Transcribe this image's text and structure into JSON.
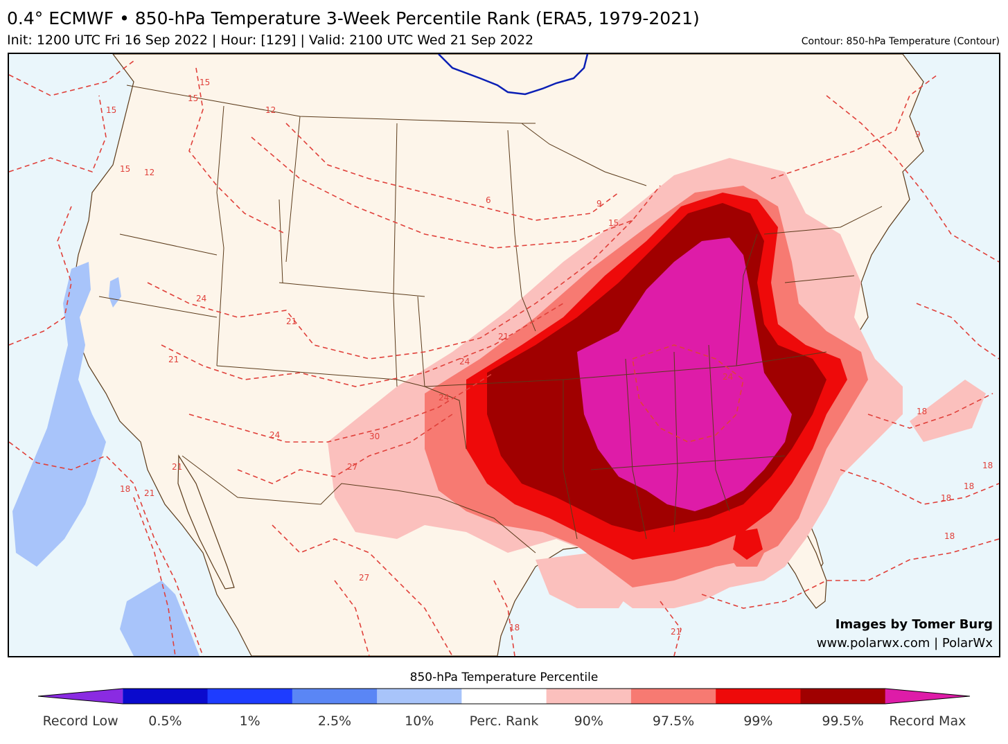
{
  "header": {
    "title": "0.4° ECMWF • 850-hPa Temperature 3-Week Percentile Rank (ERA5, 1979-2021)",
    "subtitle": "Init: 1200 UTC Fri 16 Sep 2022 | Hour: [129] | Valid: 2100 UTC Wed 21 Sep 2022",
    "contour_note": "Contour: 850-hPa Temperature (Contour)"
  },
  "credits": {
    "line1": "Images by Tomer Burg",
    "line2": "www.polarwx.com | PolarWx"
  },
  "colorbar": {
    "title": "850-hPa Temperature Percentile",
    "colors": [
      "#8a2be2",
      "#0a0acd",
      "#1e3cff",
      "#5a86f5",
      "#a8c4fa",
      "#ffffff",
      "#fbc0bd",
      "#f77a72",
      "#ee0a0a",
      "#a00000",
      "#de1ca8"
    ],
    "labels": [
      "Record Low",
      "0.5%",
      "1%",
      "2.5%",
      "10%",
      "Perc. Rank",
      "90%",
      "97.5%",
      "99%",
      "99.5%",
      "Record Max"
    ]
  },
  "map": {
    "colors": {
      "ocean": "#eaf6fb",
      "land": "#fdf5ea",
      "border": "#5a3a1a",
      "contour": "#e0403a",
      "freezing_line": "#0a1fb5"
    },
    "contour_labels": [
      "15",
      "15",
      "15",
      "12",
      "12",
      "15",
      "6",
      "9",
      "15",
      "24",
      "21",
      "21",
      "21",
      "24",
      "24",
      "30",
      "27",
      "21",
      "18",
      "21",
      "27",
      "18",
      "21",
      "18",
      "18",
      "18",
      "18",
      "18",
      "9",
      "24",
      "24"
    ]
  }
}
